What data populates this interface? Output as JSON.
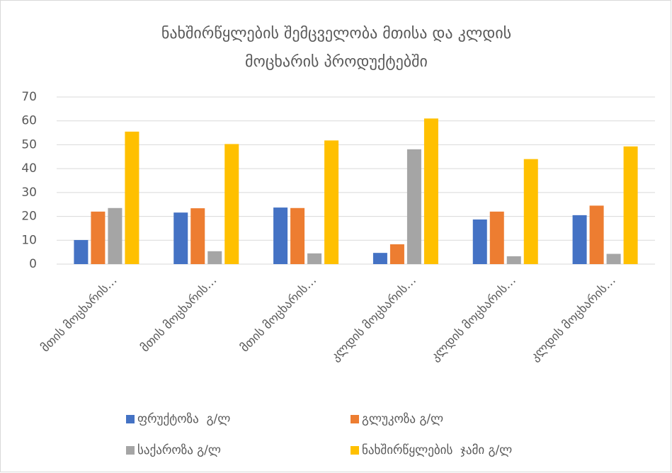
{
  "chart_data": {
    "type": "bar",
    "title": [
      "ნახშირწყლების შემცველობა მთისა და კლდის",
      "მოცხარის პროდუქტებში"
    ],
    "categories": [
      "მთის მოცხარის…",
      "მთის მოცხარის…",
      "მთის მოცხარის…",
      "კლდის მოცხარის…",
      "კლდის მოცხარის…",
      "კლდის მოცხარის…"
    ],
    "series": [
      {
        "name": "ფრუქტოზა  გ/ლ",
        "color": "#4472c4",
        "values": [
          10.1,
          21.6,
          23.7,
          4.7,
          18.7,
          20.5
        ]
      },
      {
        "name": "გლუკოზა გ/ლ",
        "color": "#ed7d31",
        "values": [
          22,
          23.4,
          23.5,
          8.3,
          22,
          24.5
        ]
      },
      {
        "name": "საქაროზა გ/ლ",
        "color": "#a5a5a5",
        "values": [
          23.5,
          5.4,
          4.5,
          48.1,
          3.3,
          4.3
        ]
      },
      {
        "name": "ნახშირწყლების  ჯამი გ/ლ",
        "color": "#ffc000",
        "values": [
          55.5,
          50.3,
          51.8,
          61,
          44,
          49.3
        ]
      }
    ],
    "ylim": [
      0,
      70
    ],
    "yticks": [
      0,
      10,
      20,
      30,
      40,
      50,
      60,
      70
    ],
    "grid": true
  }
}
